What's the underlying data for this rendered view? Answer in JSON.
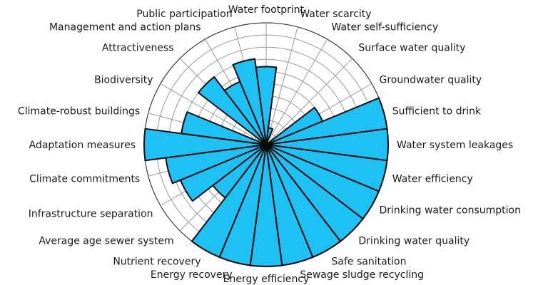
{
  "chart_data": {
    "type": "radar",
    "title": "",
    "fill_color": "#1ec1f4",
    "outline_color": "#0a0a0a",
    "grid_color": "#9a9a9a",
    "rings": 10,
    "r_range": [
      0,
      10
    ],
    "categories": [
      "Water footprint",
      "Water scarcity",
      "Water self-sufficiency",
      "Surface water quality",
      "Groundwater quality",
      "Sufficient to drink",
      "Water system leakages",
      "Water efficiency",
      "Drinking water consumption",
      "Drinking water quality",
      "Safe sanitation",
      "Sewage sludge recycling",
      "Energy efficiency",
      "Energy recovery",
      "Nutrient recovery",
      "Average age sewer system",
      "Infrastructure separation",
      "Climate commitments",
      "Adaptation measures",
      "Climate-robust buildings",
      "Biodiversity",
      "Attractiveness",
      "Management and action plans",
      "Public participation"
    ],
    "values": [
      6.4,
      1.4,
      0,
      0,
      5.0,
      10,
      10,
      10,
      10,
      10,
      10,
      10,
      10,
      10,
      10,
      5.5,
      7.6,
      8.3,
      10,
      7.0,
      0,
      7.0,
      5.6,
      7.1
    ]
  }
}
